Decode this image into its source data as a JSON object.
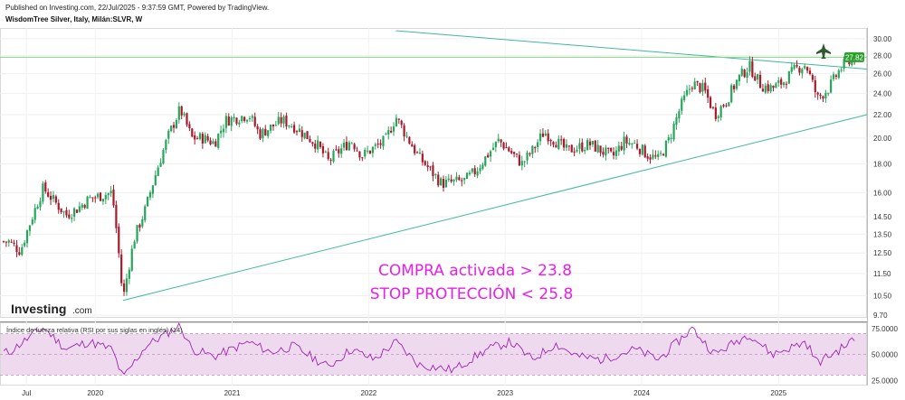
{
  "header": {
    "published": "Published on Investing.com, 22/Jul/2025 - 9:37:59 GMT, Powered by TradingView.",
    "symbol": "WisdomTree Silver, Italy, Milán:SLVR, W"
  },
  "logo": {
    "main": "Investing",
    "sub": ".com"
  },
  "price_label": "27.82",
  "annotations": [
    "COMPRA activada > 23.8",
    "STOP PROTECCIÓN < 25.8"
  ],
  "rsi_label": "Índice de fuerza relativa (RSI por sus siglas en inglés) (14)",
  "colors": {
    "up": "#26a65b",
    "down": "#a8192b",
    "rsi_line": "#9c27b0",
    "rsi_band": "#efd9ef",
    "trendline": "#3fb89a",
    "resistance": "#7fd67f",
    "annotation": "#e61fe6",
    "price_tag": "#2ca02c"
  },
  "chart_data": [
    {
      "type": "candlestick",
      "title": "WisdomTree Silver, Italy, Milán:SLVR, W",
      "y_scale": "log",
      "ylim": [
        9.7,
        31.0
      ],
      "y_ticks": [
        "30.00",
        "28.00",
        "26.00",
        "24.00",
        "22.00",
        "20.00",
        "18.00",
        "16.00",
        "14.50",
        "13.50",
        "12.50",
        "11.50",
        "10.50",
        "9.70"
      ],
      "x_ticks": [
        "Jul",
        "2020",
        "2021",
        "2022",
        "2023",
        "2024",
        "2025"
      ],
      "last_price": 27.82,
      "anchors": [
        {
          "date": "2019-05",
          "price": 13.1
        },
        {
          "date": "2019-06",
          "price": 12.6
        },
        {
          "date": "2019-07",
          "price": 14.4
        },
        {
          "date": "2019-08",
          "price": 16.3
        },
        {
          "date": "2019-09",
          "price": 15.4
        },
        {
          "date": "2019-10",
          "price": 14.6
        },
        {
          "date": "2019-11",
          "price": 15.0
        },
        {
          "date": "2019-12",
          "price": 15.6
        },
        {
          "date": "2020-02",
          "price": 16.0
        },
        {
          "date": "2020-03",
          "price": 10.3
        },
        {
          "date": "2020-04",
          "price": 13.3
        },
        {
          "date": "2020-05",
          "price": 15.0
        },
        {
          "date": "2020-07",
          "price": 20.2
        },
        {
          "date": "2020-08",
          "price": 22.5
        },
        {
          "date": "2020-09",
          "price": 20.0
        },
        {
          "date": "2020-10",
          "price": 20.0
        },
        {
          "date": "2020-11",
          "price": 19.6
        },
        {
          "date": "2020-12",
          "price": 21.5
        },
        {
          "date": "2021-02",
          "price": 22.0
        },
        {
          "date": "2021-03",
          "price": 20.3
        },
        {
          "date": "2021-05",
          "price": 21.5
        },
        {
          "date": "2021-06",
          "price": 21.0
        },
        {
          "date": "2021-08",
          "price": 19.5
        },
        {
          "date": "2021-09",
          "price": 18.2
        },
        {
          "date": "2021-11",
          "price": 19.8
        },
        {
          "date": "2021-12",
          "price": 18.6
        },
        {
          "date": "2022-02",
          "price": 19.8
        },
        {
          "date": "2022-03",
          "price": 21.8
        },
        {
          "date": "2022-04",
          "price": 20.0
        },
        {
          "date": "2022-05",
          "price": 18.5
        },
        {
          "date": "2022-07",
          "price": 16.6
        },
        {
          "date": "2022-09",
          "price": 16.8
        },
        {
          "date": "2022-10",
          "price": 17.5
        },
        {
          "date": "2022-12",
          "price": 19.8
        },
        {
          "date": "2023-02",
          "price": 18.0
        },
        {
          "date": "2023-03",
          "price": 19.0
        },
        {
          "date": "2023-04",
          "price": 20.5
        },
        {
          "date": "2023-06",
          "price": 19.0
        },
        {
          "date": "2023-08",
          "price": 19.5
        },
        {
          "date": "2023-10",
          "price": 18.5
        },
        {
          "date": "2023-11",
          "price": 19.7
        },
        {
          "date": "2023-12",
          "price": 19.5
        },
        {
          "date": "2024-01",
          "price": 18.7
        },
        {
          "date": "2024-02",
          "price": 18.3
        },
        {
          "date": "2024-03",
          "price": 19.9
        },
        {
          "date": "2024-04",
          "price": 22.8
        },
        {
          "date": "2024-05",
          "price": 25.0
        },
        {
          "date": "2024-06",
          "price": 24.4
        },
        {
          "date": "2024-07",
          "price": 22.0
        },
        {
          "date": "2024-08",
          "price": 23.3
        },
        {
          "date": "2024-09",
          "price": 25.5
        },
        {
          "date": "2024-10",
          "price": 26.8
        },
        {
          "date": "2024-11",
          "price": 24.8
        },
        {
          "date": "2024-12",
          "price": 24.5
        },
        {
          "date": "2025-01",
          "price": 25.2
        },
        {
          "date": "2025-02",
          "price": 26.5
        },
        {
          "date": "2025-03",
          "price": 27.0
        },
        {
          "date": "2025-04",
          "price": 23.5
        },
        {
          "date": "2025-05",
          "price": 24.5
        },
        {
          "date": "2025-06",
          "price": 26.5
        },
        {
          "date": "2025-07",
          "price": 27.82
        }
      ],
      "trendlines": [
        {
          "name": "support",
          "from": {
            "date": "2020-03",
            "price": 10.3
          },
          "to": {
            "date": "2025-07",
            "price": 22.0
          }
        },
        {
          "name": "resistance",
          "from": {
            "date": "2022-03",
            "price": 31.0
          },
          "to": {
            "date": "2025-07",
            "price": 26.5
          }
        },
        {
          "name": "horizontal",
          "price": 27.82
        }
      ]
    },
    {
      "type": "line",
      "title": "Índice de fuerza relativa (RSI por sus siglas en inglés) (14)",
      "ylim": [
        20,
        80
      ],
      "y_ticks": [
        "75.0000",
        "50.0000",
        "25.0000"
      ],
      "band": [
        30,
        70
      ],
      "anchors": [
        {
          "date": "2019-05",
          "value": 52
        },
        {
          "date": "2019-07",
          "value": 68
        },
        {
          "date": "2019-08",
          "value": 76
        },
        {
          "date": "2019-10",
          "value": 55
        },
        {
          "date": "2019-12",
          "value": 62
        },
        {
          "date": "2020-02",
          "value": 55
        },
        {
          "date": "2020-03",
          "value": 27
        },
        {
          "date": "2020-05",
          "value": 58
        },
        {
          "date": "2020-08",
          "value": 78
        },
        {
          "date": "2020-09",
          "value": 55
        },
        {
          "date": "2020-11",
          "value": 48
        },
        {
          "date": "2021-02",
          "value": 62
        },
        {
          "date": "2021-04",
          "value": 52
        },
        {
          "date": "2021-06",
          "value": 58
        },
        {
          "date": "2021-09",
          "value": 38
        },
        {
          "date": "2021-11",
          "value": 55
        },
        {
          "date": "2022-01",
          "value": 45
        },
        {
          "date": "2022-03",
          "value": 62
        },
        {
          "date": "2022-05",
          "value": 40
        },
        {
          "date": "2022-08",
          "value": 35
        },
        {
          "date": "2022-11",
          "value": 55
        },
        {
          "date": "2023-01",
          "value": 62
        },
        {
          "date": "2023-03",
          "value": 45
        },
        {
          "date": "2023-05",
          "value": 60
        },
        {
          "date": "2023-07",
          "value": 48
        },
        {
          "date": "2023-09",
          "value": 45
        },
        {
          "date": "2023-12",
          "value": 55
        },
        {
          "date": "2024-02",
          "value": 45
        },
        {
          "date": "2024-05",
          "value": 75
        },
        {
          "date": "2024-07",
          "value": 50
        },
        {
          "date": "2024-10",
          "value": 70
        },
        {
          "date": "2024-12",
          "value": 50
        },
        {
          "date": "2025-03",
          "value": 62
        },
        {
          "date": "2025-04",
          "value": 42
        },
        {
          "date": "2025-06",
          "value": 55
        },
        {
          "date": "2025-07",
          "value": 63
        }
      ]
    }
  ]
}
